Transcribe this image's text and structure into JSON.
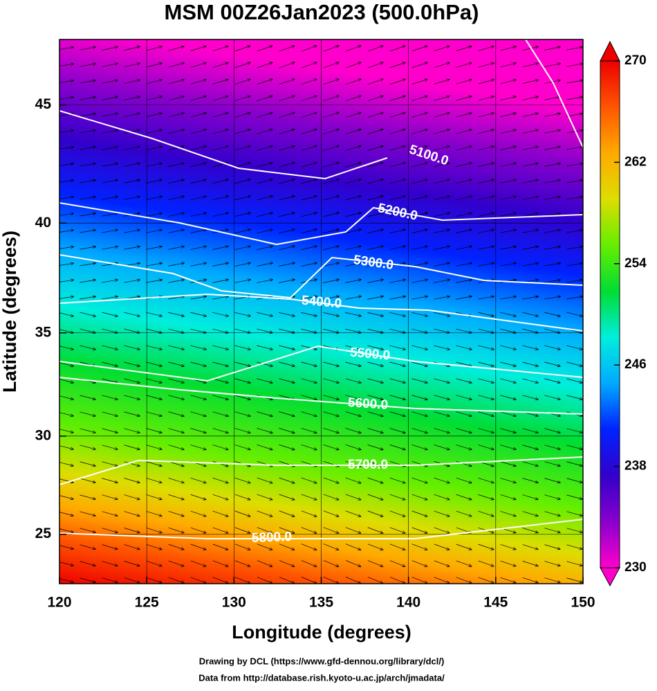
{
  "chart_data": {
    "type": "map",
    "title": "MSM 00Z26Jan2023 (500.0hPa)",
    "xlabel": "Longitude (degrees)",
    "ylabel": "Latitude  (degrees)",
    "xlim": [
      120,
      150
    ],
    "ylim": [
      22.4,
      47.6
    ],
    "yscale": "mercator",
    "xticks": [
      120,
      125,
      130,
      135,
      140,
      145,
      150
    ],
    "yticks": [
      25,
      30,
      35,
      40,
      45
    ],
    "grid": true,
    "contours": [
      {
        "value": 5100,
        "label": "5100.0"
      },
      {
        "value": 5200,
        "label": "5200.0"
      },
      {
        "value": 5300,
        "label": "5300.0"
      },
      {
        "value": 5400,
        "label": "5400.0"
      },
      {
        "value": 5500,
        "label": "5500.0"
      },
      {
        "value": 5600,
        "label": "5600.0"
      },
      {
        "value": 5700,
        "label": "5700.0"
      },
      {
        "value": 5800,
        "label": "5800.0"
      }
    ],
    "colorbar": {
      "lim": [
        230,
        270
      ],
      "ticks": [
        230,
        238,
        246,
        254,
        262,
        270
      ],
      "colormap": [
        "#ff00cc",
        "#8800cc",
        "#3300cc",
        "#0022ff",
        "#00aaff",
        "#00eedd",
        "#00dd33",
        "#66ee00",
        "#dddd00",
        "#ffaa00",
        "#ff5500",
        "#ee0000"
      ]
    },
    "credits": [
      "Drawing by DCL (https://www.gfd-dennou.org/library/dcl/)",
      "Data from http://database.rish.kyoto-u.ac.jp/arch/jmadata/"
    ]
  }
}
